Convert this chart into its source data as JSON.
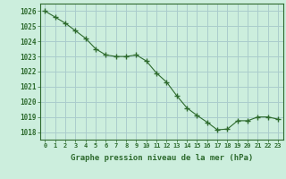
{
  "hours": [
    0,
    1,
    2,
    3,
    4,
    5,
    6,
    7,
    8,
    9,
    10,
    11,
    12,
    13,
    14,
    15,
    16,
    17,
    18,
    19,
    20,
    21,
    22,
    23
  ],
  "pressure": [
    1026.0,
    1025.6,
    1025.2,
    1024.7,
    1024.2,
    1023.5,
    1023.1,
    1023.0,
    1023.0,
    1023.1,
    1022.7,
    1021.9,
    1021.3,
    1020.4,
    1019.6,
    1019.1,
    1018.65,
    1018.15,
    1018.2,
    1018.75,
    1018.75,
    1019.0,
    1019.0,
    1018.85
  ],
  "line_color": "#2d6a2d",
  "marker": "+",
  "marker_size": 4,
  "bg_color": "#cceedd",
  "grid_color": "#aacccc",
  "axis_label_color": "#2d6a2d",
  "tick_label_color": "#2d6a2d",
  "xlabel": "Graphe pression niveau de la mer (hPa)",
  "ylim_min": 1017.5,
  "ylim_max": 1026.5,
  "yticks": [
    1018,
    1019,
    1020,
    1021,
    1022,
    1023,
    1024,
    1025,
    1026
  ],
  "xticks": [
    0,
    1,
    2,
    3,
    4,
    5,
    6,
    7,
    8,
    9,
    10,
    11,
    12,
    13,
    14,
    15,
    16,
    17,
    18,
    19,
    20,
    21,
    22,
    23
  ]
}
